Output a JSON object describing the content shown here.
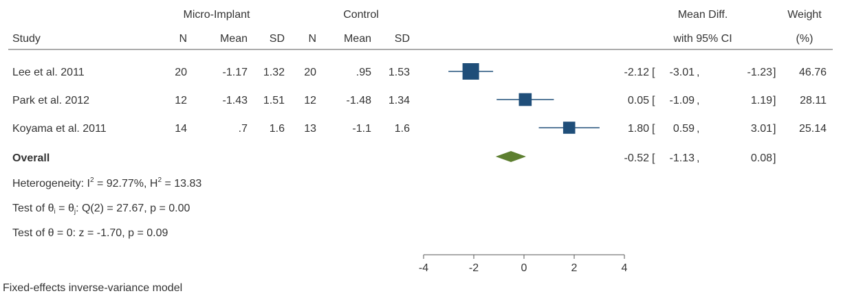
{
  "chart_data": {
    "type": "forest",
    "group_headers": {
      "treatment": "Micro-Implant",
      "control": "Control"
    },
    "columns": {
      "study": "Study",
      "n": "N",
      "mean": "Mean",
      "sd": "SD",
      "effect_line1": "Mean Diff.",
      "effect_line2": "with 95% CI",
      "weight_line1": "Weight",
      "weight_line2": "(%)"
    },
    "studies": [
      {
        "name": "Lee et al. 2011",
        "t_n": "20",
        "t_mean": "-1.17",
        "t_sd": "1.32",
        "c_n": "20",
        "c_mean": ".95",
        "c_sd": "1.53",
        "est": -2.12,
        "lo": -3.01,
        "hi": -1.23,
        "weight_value": 46.76,
        "est_text": "-2.12",
        "lo_text": "-3.01",
        "hi_text": "-1.23",
        "weight": "46.76"
      },
      {
        "name": "Park et al. 2012",
        "t_n": "12",
        "t_mean": "-1.43",
        "t_sd": "1.51",
        "c_n": "12",
        "c_mean": "-1.48",
        "c_sd": "1.34",
        "est": 0.05,
        "lo": -1.09,
        "hi": 1.19,
        "weight_value": 28.11,
        "est_text": "0.05",
        "lo_text": "-1.09",
        "hi_text": "1.19",
        "weight": "28.11"
      },
      {
        "name": "Koyama et al. 2011",
        "t_n": "14",
        "t_mean": ".7",
        "t_sd": "1.6",
        "c_n": "13",
        "c_mean": "-1.1",
        "c_sd": "1.6",
        "est": 1.8,
        "lo": 0.59,
        "hi": 3.01,
        "weight_value": 25.14,
        "est_text": "1.80",
        "lo_text": "0.59",
        "hi_text": "3.01",
        "weight": "25.14"
      }
    ],
    "overall": {
      "label": "Overall",
      "est": -0.52,
      "lo": -1.13,
      "hi": 0.08,
      "est_text": "-0.52",
      "lo_text": "-1.13",
      "hi_text": "0.08"
    },
    "heterogeneity": {
      "prefix": "Heterogeneity: I",
      "sup1": "2",
      "mid": " = 92.77%, H",
      "sup2": "2",
      "suffix": " = 13.83"
    },
    "test_homogeneity": {
      "prefix": "Test of θ",
      "sub1": "i",
      "mid": " = θ",
      "sub2": "j",
      "suffix": ": Q(2) = 27.67, p = 0.00"
    },
    "test_effect": "Test of θ = 0: z = -1.70, p = 0.09",
    "model_note": "Fixed-effects inverse-variance model",
    "x_ticks": [
      -4,
      -2,
      0,
      2,
      4
    ],
    "xlim": [
      -4,
      4
    ],
    "colors": {
      "study_marker": "#1f4e79",
      "overall_marker": "#5d7f30",
      "ci_line": "#1f4e79",
      "text": "#333333",
      "axis": "#555555"
    }
  }
}
